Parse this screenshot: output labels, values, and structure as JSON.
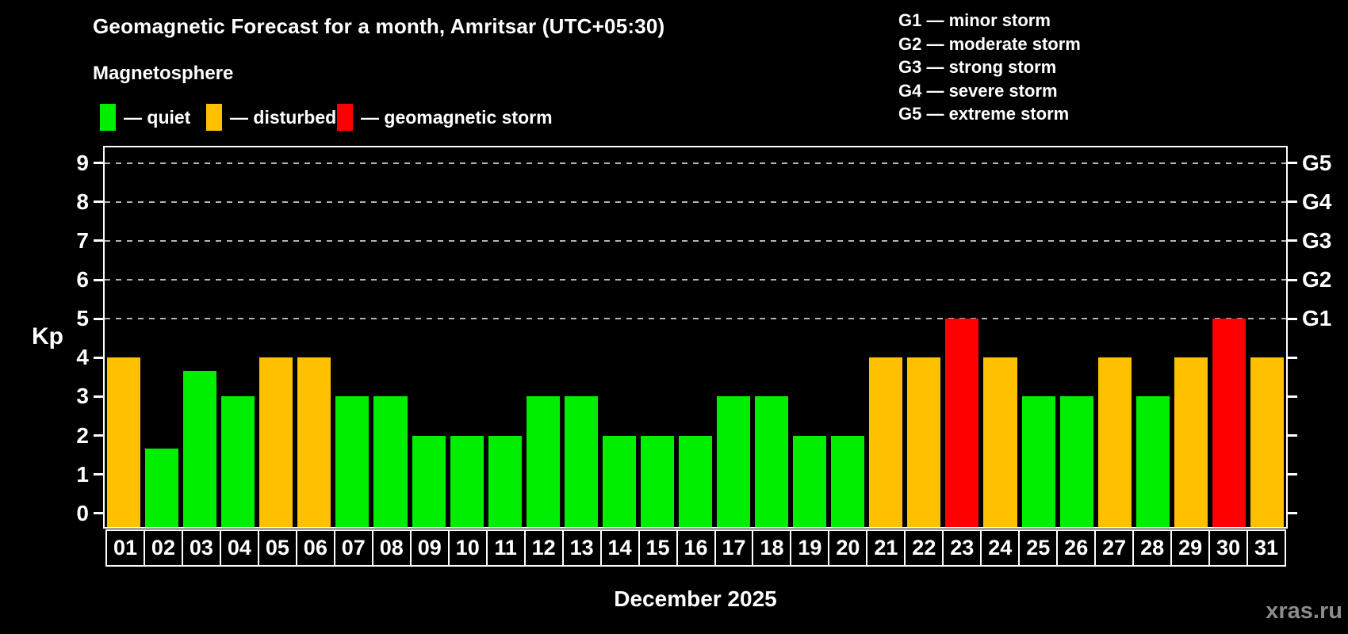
{
  "header": {
    "title": "Geomagnetic Forecast for a month, Amritsar (UTC+05:30)",
    "subtitle": "Magnetosphere"
  },
  "legend": {
    "items": [
      {
        "label": "— quiet",
        "state": "quiet",
        "color": "#00ee00"
      },
      {
        "label": "— disturbed",
        "state": "disturbed",
        "color": "#ffc000"
      },
      {
        "label": "— geomagnetic storm",
        "state": "storm",
        "color": "#ff0000"
      }
    ]
  },
  "storm_scale_legend": {
    "items": [
      "G1 — minor storm",
      "G2 — moderate storm",
      "G3 — strong storm",
      "G4 — severe storm",
      "G5 — extreme storm"
    ]
  },
  "chart_data": {
    "type": "bar",
    "title": "Geomagnetic Forecast for a month, Amritsar (UTC+05:30)",
    "xlabel": "December 2025",
    "ylabel": "Kp",
    "ylim": [
      0,
      9
    ],
    "y_ticks": [
      0,
      1,
      2,
      3,
      4,
      5,
      6,
      7,
      8,
      9
    ],
    "gridlines_at": [
      5,
      6,
      7,
      8,
      9
    ],
    "grid_style": "dashed",
    "legend_position": "top-left",
    "right_axis_labels": [
      {
        "label": "G1",
        "kp": 5
      },
      {
        "label": "G2",
        "kp": 6
      },
      {
        "label": "G3",
        "kp": 7
      },
      {
        "label": "G4",
        "kp": 8
      },
      {
        "label": "G5",
        "kp": 9
      }
    ],
    "categories": [
      "01",
      "02",
      "03",
      "04",
      "05",
      "06",
      "07",
      "08",
      "09",
      "10",
      "11",
      "12",
      "13",
      "14",
      "15",
      "16",
      "17",
      "18",
      "19",
      "20",
      "21",
      "22",
      "23",
      "24",
      "25",
      "26",
      "27",
      "28",
      "29",
      "30",
      "31"
    ],
    "values": [
      4,
      1.67,
      3.67,
      3,
      4,
      4,
      3,
      3,
      2,
      2,
      2,
      3,
      3,
      2,
      2,
      2,
      3,
      3,
      2,
      2,
      4,
      4,
      5,
      4,
      3,
      3,
      4,
      3,
      4,
      5,
      4
    ],
    "states": [
      "disturbed",
      "quiet",
      "quiet",
      "quiet",
      "disturbed",
      "disturbed",
      "quiet",
      "quiet",
      "quiet",
      "quiet",
      "quiet",
      "quiet",
      "quiet",
      "quiet",
      "quiet",
      "quiet",
      "quiet",
      "quiet",
      "quiet",
      "quiet",
      "disturbed",
      "disturbed",
      "storm",
      "disturbed",
      "quiet",
      "quiet",
      "disturbed",
      "quiet",
      "disturbed",
      "storm",
      "disturbed"
    ],
    "state_colors": {
      "quiet": "#00ee00",
      "disturbed": "#ffc000",
      "storm": "#ff0000"
    }
  },
  "footer": {
    "watermark": "xras.ru"
  }
}
